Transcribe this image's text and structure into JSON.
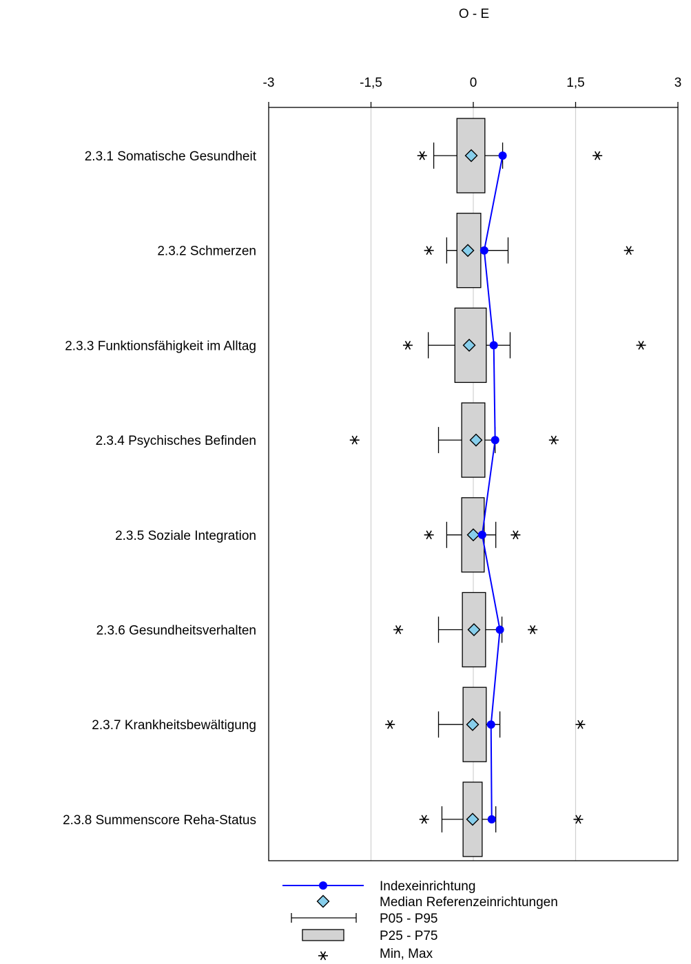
{
  "chart_data": {
    "type": "boxplot",
    "title": "O - E",
    "xlim": [
      -3,
      3
    ],
    "x_ticks": [
      -3,
      -1.5,
      0,
      1.5,
      3
    ],
    "x_tick_labels": [
      "-3",
      "-1,5",
      "0",
      "1,5",
      "3"
    ],
    "grid": "vertical",
    "legend_position": "bottom",
    "colors": {
      "index_line": "#0000ff",
      "index_marker": "#0000ff",
      "median_marker": "#87ceeb",
      "box_fill": "#d3d3d3",
      "grid": "#d0d0d0"
    },
    "categories": [
      "2.3.1 Somatische Gesundheit",
      "2.3.2 Schmerzen",
      "2.3.3 Funktionsfähigkeit im Alltag",
      "2.3.4 Psychisches Befinden",
      "2.3.5 Soziale Integration",
      "2.3.6 Gesundheitsverhalten",
      "2.3.7 Krankheitsbewältigung",
      "2.3.8 Summenscore Reha-Status"
    ],
    "stats": [
      {
        "min": -0.75,
        "p05": -0.58,
        "p25": -0.24,
        "median": -0.03,
        "p75": 0.17,
        "p95": 0.43,
        "max": 1.82
      },
      {
        "min": -0.65,
        "p05": -0.39,
        "p25": -0.24,
        "median": -0.08,
        "p75": 0.11,
        "p95": 0.51,
        "max": 2.28
      },
      {
        "min": -0.96,
        "p05": -0.66,
        "p25": -0.27,
        "median": -0.06,
        "p75": 0.19,
        "p95": 0.54,
        "max": 2.46
      },
      {
        "min": -1.74,
        "p05": -0.51,
        "p25": -0.17,
        "median": 0.04,
        "p75": 0.17,
        "p95": 0.32,
        "max": 1.18
      },
      {
        "min": -0.65,
        "p05": -0.39,
        "p25": -0.17,
        "median": 0.0,
        "p75": 0.16,
        "p95": 0.33,
        "max": 0.62
      },
      {
        "min": -1.1,
        "p05": -0.51,
        "p25": -0.16,
        "median": 0.01,
        "p75": 0.18,
        "p95": 0.42,
        "max": 0.87
      },
      {
        "min": -1.22,
        "p05": -0.51,
        "p25": -0.15,
        "median": -0.01,
        "p75": 0.19,
        "p95": 0.39,
        "max": 1.57
      },
      {
        "min": -0.72,
        "p05": -0.46,
        "p25": -0.15,
        "median": -0.01,
        "p75": 0.13,
        "p95": 0.33,
        "max": 1.54
      }
    ],
    "series": [
      {
        "name": "Indexeinrichtung",
        "values": [
          0.43,
          0.16,
          0.3,
          0.32,
          0.13,
          0.39,
          0.26,
          0.27
        ]
      }
    ],
    "legend": [
      {
        "key": "index",
        "label": "Indexeinrichtung"
      },
      {
        "key": "median",
        "label": "Median Referenzeinrichtungen"
      },
      {
        "key": "range",
        "label": "P05 - P95"
      },
      {
        "key": "box",
        "label": "P25 - P75"
      },
      {
        "key": "minmax",
        "label": "Min, Max"
      }
    ]
  }
}
